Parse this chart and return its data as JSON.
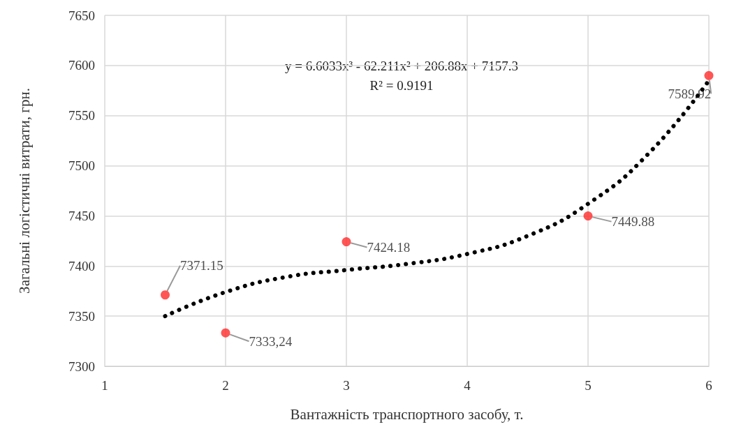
{
  "chart_data": {
    "type": "scatter",
    "xlabel": "Вантажність транспортного засобу, т.",
    "ylabel": "Загальні логістичні витрати, грн.",
    "annotations": [
      "y = 6.6033x³ - 62.211x² + 206.88x + 7157.3",
      "R² = 0.9191"
    ],
    "x": [
      1.5,
      2,
      3,
      5,
      6
    ],
    "series": [
      {
        "type": "scatter",
        "color": "#ff2a2a",
        "values": [
          7371.15,
          7333.24,
          7424.18,
          7449.88,
          7589.92
        ],
        "value_labels": [
          "7371.15",
          "7333,24",
          "7424.18",
          "7449.88",
          "7589.92"
        ]
      },
      {
        "type": "line",
        "color": "#000000",
        "x": [
          1.5,
          2,
          2.5,
          3,
          3.5,
          4,
          4.5,
          5,
          5.5,
          6
        ],
        "values": [
          7350,
          7374,
          7389,
          7396,
          7402,
          7412,
          7430,
          7462,
          7512,
          7585
        ],
        "line_style": "dotted",
        "marker": "none"
      }
    ],
    "xlim": [
      1,
      6
    ],
    "xticks": [
      1,
      2,
      3,
      4,
      5,
      6
    ],
    "ylim": [
      7300,
      7650
    ],
    "yticks": [
      7300,
      7350,
      7400,
      7450,
      7500,
      7550,
      7600,
      7650
    ],
    "grid": true,
    "marker": "circle"
  }
}
